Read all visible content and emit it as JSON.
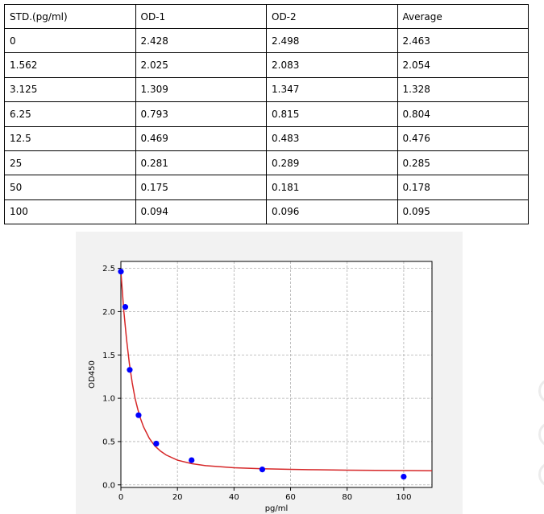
{
  "table": {
    "headers": [
      "STD.(pg/ml)",
      "OD-1",
      "OD-2",
      "Average"
    ],
    "rows": [
      [
        "0",
        "2.428",
        "2.498",
        "2.463"
      ],
      [
        "1.562",
        "2.025",
        "2.083",
        "2.054"
      ],
      [
        "3.125",
        "1.309",
        "1.347",
        "1.328"
      ],
      [
        "6.25",
        "0.793",
        "0.815",
        "0.804"
      ],
      [
        "12.5",
        "0.469",
        "0.483",
        "0.476"
      ],
      [
        "25",
        "0.281",
        "0.289",
        "0.285"
      ],
      [
        "50",
        "0.175",
        "0.181",
        "0.178"
      ],
      [
        "100",
        "0.094",
        "0.096",
        "0.095"
      ]
    ]
  },
  "chart_data": {
    "type": "scatter",
    "title": "",
    "xlabel": "pg/ml",
    "ylabel": "OD450",
    "xlim": [
      0,
      110
    ],
    "ylim": [
      -0.03,
      2.58
    ],
    "xticks": [
      0,
      20,
      40,
      60,
      80,
      100
    ],
    "yticks": [
      0.0,
      0.5,
      1.0,
      1.5,
      2.0,
      2.5
    ],
    "xtick_labels": [
      "0",
      "20",
      "40",
      "60",
      "80",
      "100"
    ],
    "ytick_labels": [
      "0.0",
      "0.5",
      "1.0",
      "1.5",
      "2.0",
      "2.5"
    ],
    "grid": true,
    "series": [
      {
        "type": "scatter",
        "color": "#0000ff",
        "x": [
          0,
          1.562,
          3.125,
          6.25,
          12.5,
          25,
          50,
          100
        ],
        "y": [
          2.463,
          2.054,
          1.328,
          0.804,
          0.476,
          0.285,
          0.178,
          0.095
        ]
      },
      {
        "type": "line",
        "color": "#d62728",
        "x": [
          0,
          1,
          2,
          3,
          4,
          5,
          6,
          7,
          8,
          10,
          12,
          14,
          16,
          20,
          25,
          30,
          40,
          50,
          60,
          70,
          80,
          90,
          100,
          110
        ],
        "y": [
          2.46,
          2.02,
          1.68,
          1.4,
          1.18,
          1.0,
          0.87,
          0.76,
          0.67,
          0.54,
          0.45,
          0.39,
          0.345,
          0.285,
          0.245,
          0.222,
          0.198,
          0.186,
          0.179,
          0.174,
          0.17,
          0.167,
          0.165,
          0.163
        ]
      }
    ]
  }
}
